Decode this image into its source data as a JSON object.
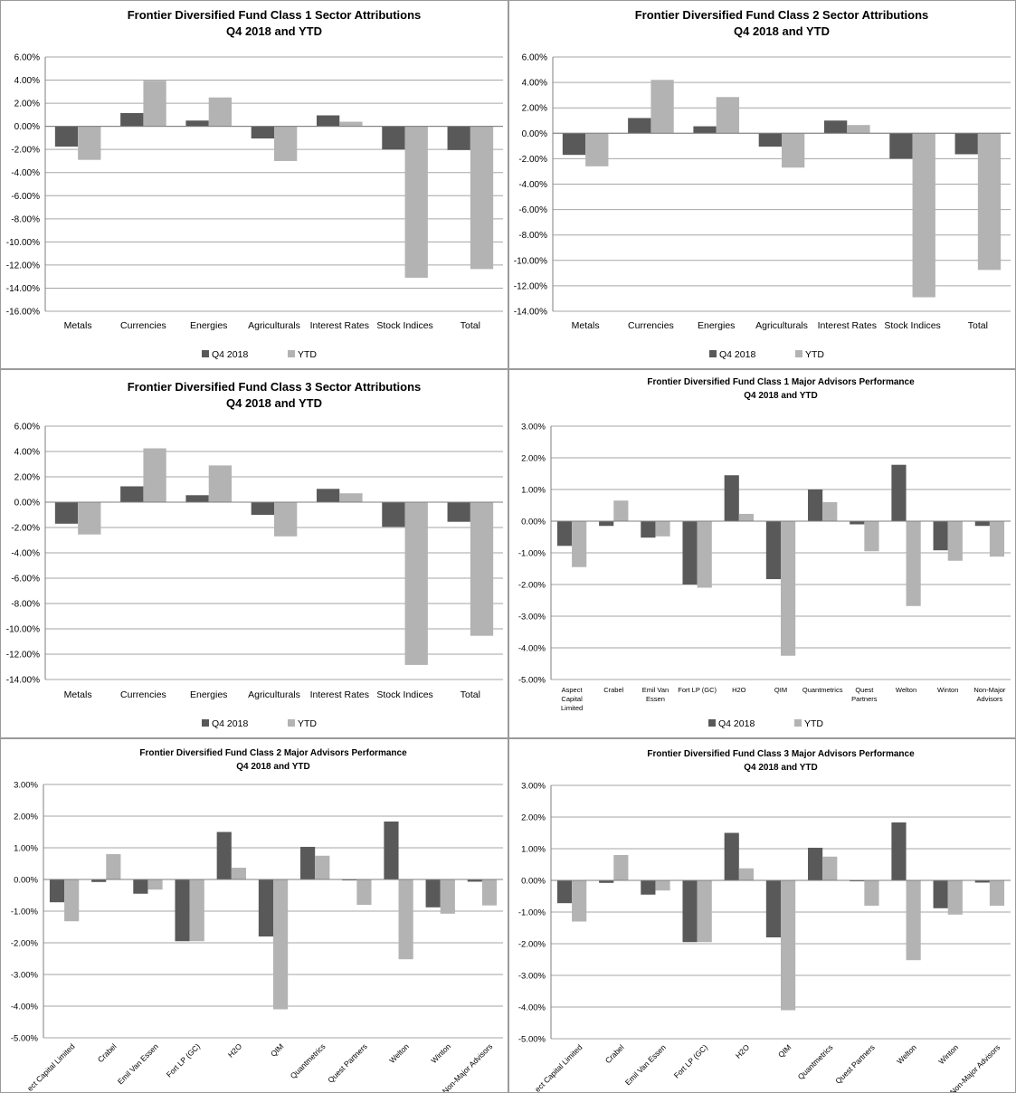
{
  "colors": {
    "q4": "#595959",
    "ytd": "#b3b3b3",
    "grid": "#a6a6a6",
    "axis": "#7f7f7f"
  },
  "legend_labels": [
    "Q4 2018",
    "YTD"
  ],
  "chart_data": [
    {
      "id": "class1-sector",
      "type": "bar",
      "title": "Frontier Diversified Fund Class 1 Sector Attributions",
      "subtitle": "Q4 2018 and YTD",
      "categories": [
        "Metals",
        "Currencies",
        "Energies",
        "Agriculturals",
        "Interest Rates",
        "Stock Indices",
        "Total"
      ],
      "series": [
        {
          "name": "Q4 2018",
          "values": [
            -1.75,
            1.15,
            0.5,
            -1.05,
            0.95,
            -2.0,
            -2.05
          ]
        },
        {
          "name": "YTD",
          "values": [
            -2.9,
            3.95,
            2.5,
            -3.0,
            0.4,
            -13.1,
            -12.35
          ]
        }
      ],
      "ylim": [
        -16,
        6
      ],
      "yticks": [
        6,
        4,
        2,
        0,
        -2,
        -4,
        -6,
        -8,
        -10,
        -12,
        -14,
        -16
      ],
      "ytick_labels": [
        "6.00%",
        "4.00%",
        "2.00%",
        "0.00%",
        "-2.00%",
        "-4.00%",
        "-6.00%",
        "-8.00%",
        "-10.00%",
        "-12.00%",
        "-14.00%",
        "-16.00%"
      ],
      "grid": true,
      "legend": "bottom",
      "xlabel": "",
      "ylabel": ""
    },
    {
      "id": "class2-sector",
      "type": "bar",
      "title": "Frontier Diversified Fund Class 2 Sector Attributions",
      "subtitle": "Q4 2018 and YTD",
      "categories": [
        "Metals",
        "Currencies",
        "Energies",
        "Agriculturals",
        "Interest Rates",
        "Stock Indices",
        "Total"
      ],
      "series": [
        {
          "name": "Q4 2018",
          "values": [
            -1.7,
            1.2,
            0.55,
            -1.05,
            1.0,
            -2.0,
            -1.65
          ]
        },
        {
          "name": "YTD",
          "values": [
            -2.6,
            4.2,
            2.85,
            -2.7,
            0.65,
            -12.9,
            -10.75
          ]
        }
      ],
      "ylim": [
        -14,
        6
      ],
      "yticks": [
        6,
        4,
        2,
        0,
        -2,
        -4,
        -6,
        -8,
        -10,
        -12,
        -14
      ],
      "ytick_labels": [
        "6.00%",
        "4.00%",
        "2.00%",
        "0.00%",
        "-2.00%",
        "-4.00%",
        "-6.00%",
        "-8.00%",
        "-10.00%",
        "-12.00%",
        "-14.00%"
      ],
      "grid": true,
      "legend": "bottom",
      "xlabel": "",
      "ylabel": ""
    },
    {
      "id": "class3-sector",
      "type": "bar",
      "title": "Frontier Diversified Fund Class 3 Sector Attributions",
      "subtitle": "Q4 2018 and YTD",
      "categories": [
        "Metals",
        "Currencies",
        "Energies",
        "Agriculturals",
        "Interest Rates",
        "Stock Indices",
        "Total"
      ],
      "series": [
        {
          "name": "Q4 2018",
          "values": [
            -1.7,
            1.25,
            0.55,
            -1.0,
            1.05,
            -1.95,
            -1.55
          ]
        },
        {
          "name": "YTD",
          "values": [
            -2.55,
            4.25,
            2.9,
            -2.7,
            0.7,
            -12.85,
            -10.55
          ]
        }
      ],
      "ylim": [
        -14,
        6
      ],
      "yticks": [
        6,
        4,
        2,
        0,
        -2,
        -4,
        -6,
        -8,
        -10,
        -12,
        -14
      ],
      "ytick_labels": [
        "6.00%",
        "4.00%",
        "2.00%",
        "0.00%",
        "-2.00%",
        "-4.00%",
        "-6.00%",
        "-8.00%",
        "-10.00%",
        "-12.00%",
        "-14.00%"
      ],
      "grid": true,
      "legend": "bottom",
      "xlabel": "",
      "ylabel": ""
    },
    {
      "id": "class1-advisors",
      "type": "bar",
      "title": "Frontier Diversified Fund Class 1 Major Advisors Performance",
      "subtitle": "Q4 2018 and YTD",
      "categories": [
        "Aspect Capital Limited",
        "Crabel",
        "Emil Van Essen",
        "Fort LP (GC)",
        "H2O",
        "QIM",
        "Quantmetrics",
        "Quest Partners",
        "Welton",
        "Winton",
        "Non-Major Advisors"
      ],
      "category_lines": [
        [
          "Aspect",
          "Capital",
          "Limited"
        ],
        [
          "Crabel"
        ],
        [
          "Emil Van",
          "Essen"
        ],
        [
          "Fort LP (GC)"
        ],
        [
          "H2O"
        ],
        [
          "QIM"
        ],
        [
          "Quantmetrics"
        ],
        [
          "Quest",
          "Partners"
        ],
        [
          "Welton"
        ],
        [
          "Winton"
        ],
        [
          "Non-Major",
          "Advisors"
        ]
      ],
      "series": [
        {
          "name": "Q4 2018",
          "values": [
            -0.78,
            -0.15,
            -0.52,
            -2.0,
            1.45,
            -1.83,
            1.0,
            -0.1,
            1.78,
            -0.92,
            -0.15
          ]
        },
        {
          "name": "YTD",
          "values": [
            -1.45,
            0.65,
            -0.48,
            -2.1,
            0.23,
            -4.25,
            0.6,
            -0.95,
            -2.68,
            -1.25,
            -1.12
          ]
        }
      ],
      "ylim": [
        -5,
        3
      ],
      "yticks": [
        3,
        2,
        1,
        0,
        -1,
        -2,
        -3,
        -4,
        -5
      ],
      "ytick_labels": [
        "3.00%",
        "2.00%",
        "1.00%",
        "0.00%",
        "-1.00%",
        "-2.00%",
        "-3.00%",
        "-4.00%",
        "-5.00%"
      ],
      "grid": true,
      "legend": "bottom",
      "xlabel": "",
      "ylabel": ""
    },
    {
      "id": "class2-advisors",
      "type": "bar",
      "title": "Frontier Diversified Fund Class 2 Major Advisors Performance",
      "subtitle": "Q4 2018 and YTD",
      "categories": [
        "Aspect Capital Limited",
        "Crabel",
        "Emil Van Essen",
        "Fort LP (GC)",
        "H2O",
        "QIM",
        "Quantmetrics",
        "Quest Partners",
        "Welton",
        "Winton",
        "Non-Major Advisors"
      ],
      "visible_tick_labels": [
        "ect Capital Limited",
        "Crabel",
        "Emil Van Essen",
        "Fort LP (GC)",
        "H2O",
        "QIM",
        "Quantmetrics",
        "Quest Partners",
        "Welton",
        "Winton",
        "Non-Major Advisors"
      ],
      "series": [
        {
          "name": "Q4 2018",
          "values": [
            -0.72,
            -0.08,
            -0.45,
            -1.95,
            1.5,
            -1.8,
            1.03,
            -0.03,
            1.83,
            -0.88,
            -0.07
          ]
        },
        {
          "name": "YTD",
          "values": [
            -1.32,
            0.8,
            -0.32,
            -1.95,
            0.37,
            -4.1,
            0.75,
            -0.8,
            -2.52,
            -1.08,
            -0.82
          ]
        }
      ],
      "ylim": [
        -5,
        3
      ],
      "yticks": [
        3,
        2,
        1,
        0,
        -1,
        -2,
        -3,
        -4,
        -5
      ],
      "ytick_labels": [
        "3.00%",
        "2.00%",
        "1.00%",
        "0.00%",
        "-1.00%",
        "-2.00%",
        "-3.00%",
        "-4.00%",
        "-5.00%"
      ],
      "grid": true,
      "legend": "none",
      "xlabel": "",
      "ylabel": ""
    },
    {
      "id": "class3-advisors",
      "type": "bar",
      "title": "Frontier Diversified Fund Class 3 Major Advisors Performance",
      "subtitle": "Q4 2018 and YTD",
      "categories": [
        "Aspect Capital Limited",
        "Crabel",
        "Emil Van Essen",
        "Fort LP (GC)",
        "H2O",
        "QIM",
        "Quantmetrics",
        "Quest Partners",
        "Welton",
        "Winton",
        "Non-Major Advisors"
      ],
      "visible_tick_labels": [
        "ect Capital Limited",
        "Crabel",
        "Emil Van Essen",
        "Fort LP (GC)",
        "H2O",
        "QIM",
        "Quantmetrics",
        "Quest Partners",
        "Welton",
        "Winton",
        "Non-Major Advisors"
      ],
      "series": [
        {
          "name": "Q4 2018",
          "values": [
            -0.72,
            -0.08,
            -0.45,
            -1.95,
            1.5,
            -1.8,
            1.03,
            -0.03,
            1.83,
            -0.88,
            -0.07
          ]
        },
        {
          "name": "YTD",
          "values": [
            -1.3,
            0.8,
            -0.32,
            -1.95,
            0.38,
            -4.1,
            0.75,
            -0.8,
            -2.52,
            -1.08,
            -0.8
          ]
        }
      ],
      "ylim": [
        -5,
        3
      ],
      "yticks": [
        3,
        2,
        1,
        0,
        -1,
        -2,
        -3,
        -4,
        -5
      ],
      "ytick_labels": [
        "3.00%",
        "2.00%",
        "1.00%",
        "0.00%",
        "-1.00%",
        "-2.00%",
        "-3.00%",
        "-4.00%",
        "-5.00%"
      ],
      "grid": true,
      "legend": "none",
      "xlabel": "",
      "ylabel": ""
    }
  ]
}
